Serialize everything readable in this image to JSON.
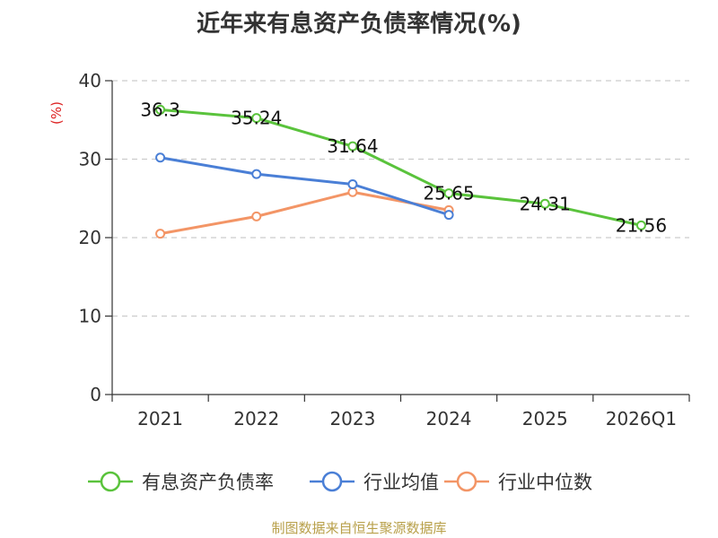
{
  "title": "近年来有息资产负债率情况(%)",
  "source": "制图数据来自恒生聚源数据库",
  "chart_data": {
    "type": "line",
    "title": "近年来有息资产负债率情况(%)",
    "ylabel": "(%)",
    "xlabel": "",
    "categories": [
      "2021",
      "2022",
      "2023",
      "2024",
      "2025",
      "2026Q1"
    ],
    "ylim": [
      0,
      40
    ],
    "yticks": [
      0,
      10,
      20,
      30,
      40
    ],
    "grid": true,
    "legend_position": "bottom",
    "series": [
      {
        "name": "有息资产负债率",
        "color": "#5ac33c",
        "values": [
          36.3,
          35.24,
          31.64,
          25.65,
          24.31,
          21.56
        ],
        "labels": [
          "36.3",
          "35.24",
          "31.64",
          "25.65",
          "24.31",
          "21.56"
        ]
      },
      {
        "name": "行业均值",
        "color": "#4a7fd6",
        "values": [
          30.2,
          28.1,
          26.8,
          22.9,
          null,
          null
        ]
      },
      {
        "name": "行业中位数",
        "color": "#f39566",
        "values": [
          20.5,
          22.7,
          25.8,
          23.5,
          null,
          null
        ]
      }
    ]
  }
}
